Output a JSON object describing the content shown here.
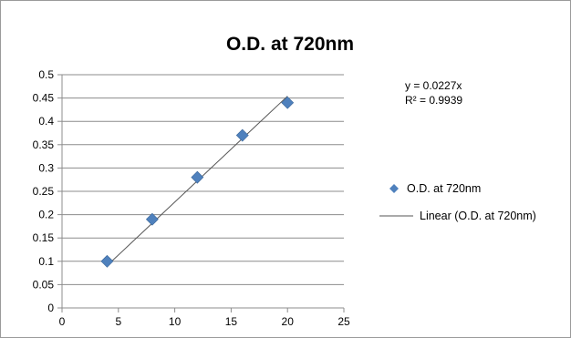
{
  "chart_data": {
    "type": "scatter",
    "title": "O.D. at 720nm",
    "xlabel": "",
    "ylabel": "",
    "xlim": [
      0,
      25
    ],
    "ylim": [
      0,
      0.5
    ],
    "x_ticks": [
      "0",
      "5",
      "10",
      "15",
      "20",
      "25"
    ],
    "y_ticks": [
      "0",
      "0.05",
      "0.1",
      "0.15",
      "0.2",
      "0.25",
      "0.3",
      "0.35",
      "0.4",
      "0.45",
      "0.5"
    ],
    "grid": "horizontal",
    "legend_position": "right",
    "series": [
      {
        "name": "O.D. at 720nm",
        "marker": "diamond",
        "color": "#4F81BD",
        "x": [
          4,
          8,
          12,
          16,
          20
        ],
        "y": [
          0.1,
          0.19,
          0.28,
          0.37,
          0.44
        ]
      }
    ],
    "trendline": {
      "name": "Linear (O.D. at 720nm)",
      "type": "linear",
      "slope": 0.0227,
      "intercept": 0,
      "x_range": [
        4,
        20
      ],
      "color": "#555555",
      "equation": "y = 0.0227x",
      "r_squared": "R² = 0.9939"
    }
  }
}
